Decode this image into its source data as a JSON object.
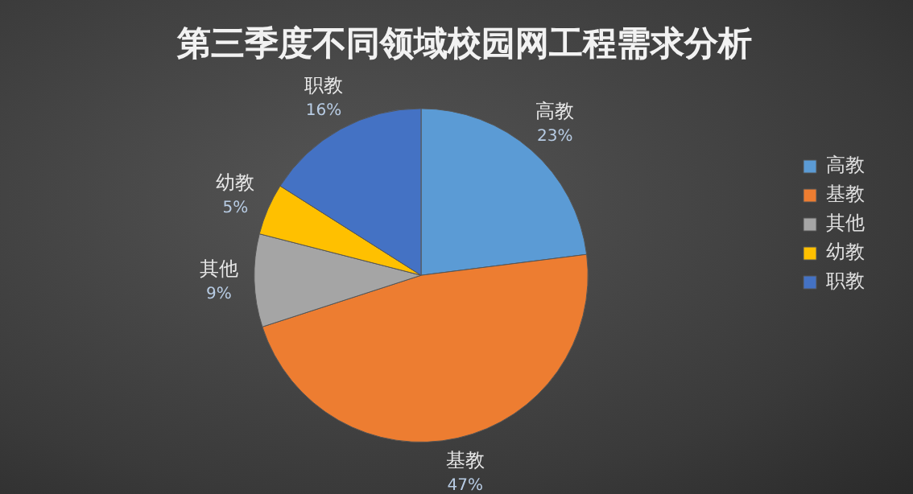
{
  "chart_data": {
    "type": "pie",
    "title": "第三季度不同领域校园网工程需求分析",
    "categories": [
      "高教",
      "基教",
      "其他",
      "幼教",
      "职教"
    ],
    "values": [
      23,
      47,
      9,
      5,
      16
    ],
    "colors": [
      "#5b9bd5",
      "#ed7d31",
      "#a5a5a5",
      "#ffc000",
      "#4472c4"
    ],
    "value_labels": [
      "23%",
      "47%",
      "9%",
      "5%",
      "16%"
    ],
    "legend": "right"
  }
}
